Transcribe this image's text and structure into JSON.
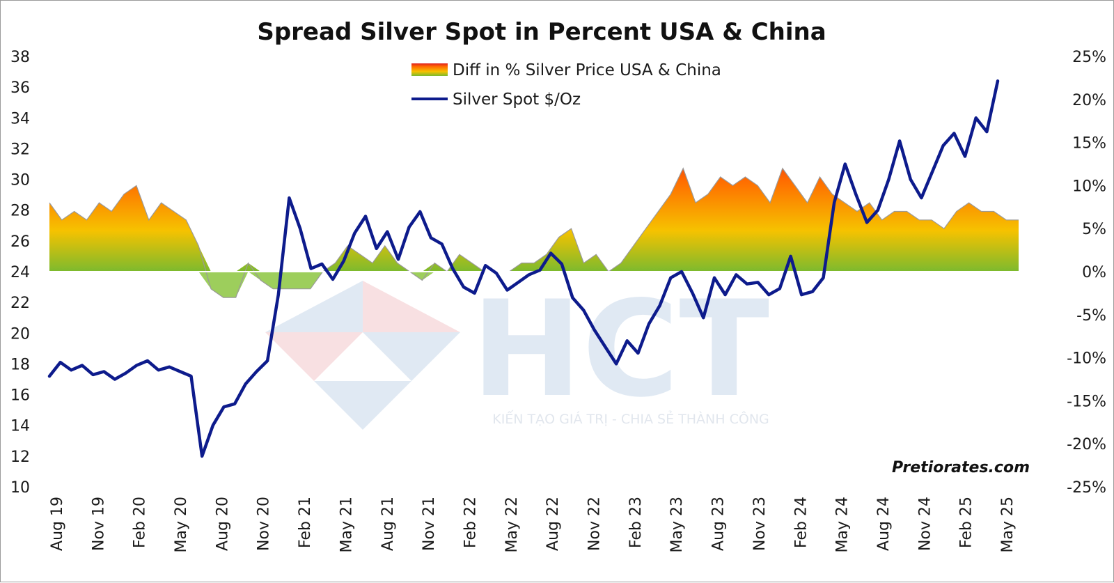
{
  "chart_data": {
    "type": "line",
    "title": "Spread Silver Spot in Percent USA & China",
    "x_tick_labels": [
      "Aug 19",
      "Nov 19",
      "Feb 20",
      "May 20",
      "Aug 20",
      "Nov 20",
      "Feb 21",
      "May 21",
      "Aug 21",
      "Nov 21",
      "Feb 22",
      "May 22",
      "Aug 22",
      "Nov 22",
      "Feb 23",
      "May 23",
      "Aug 23",
      "Nov 23",
      "Feb 24",
      "May 24",
      "Aug 24",
      "Nov 24",
      "Feb 25",
      "May 25"
    ],
    "y_left": {
      "ylim": [
        10,
        38
      ],
      "tick_labels": [
        "38",
        "36",
        "34",
        "32",
        "30",
        "28",
        "26",
        "24",
        "22",
        "20",
        "18",
        "16",
        "14",
        "12",
        "10"
      ]
    },
    "y_right": {
      "ylim": [
        -25,
        25
      ],
      "tick_labels": [
        "25%",
        "20%",
        "15%",
        "10%",
        "5%",
        "0%",
        "-5%",
        "-10%",
        "-15%",
        "-20%",
        "-25%"
      ]
    },
    "legend": [
      "Diff in % Silver Price USA & China",
      "Silver Spot  $/Oz"
    ],
    "series": [
      {
        "name": "Diff in % Silver Price USA & China",
        "type": "area",
        "axis": "right",
        "color_scale": [
          "#7cba2e",
          "#f6c200",
          "#ff6a00",
          "#e02020"
        ],
        "values": [
          8,
          6,
          7,
          6,
          8,
          7,
          9,
          10,
          6,
          8,
          7,
          6,
          3,
          -2,
          -3,
          -3,
          1,
          -1,
          -2,
          -2,
          -2,
          -2,
          0,
          1,
          3,
          2,
          1,
          3,
          1,
          0,
          -1,
          1,
          0,
          2,
          1,
          0,
          0,
          0,
          1,
          1,
          2,
          4,
          5,
          1,
          2,
          0,
          1,
          3,
          5,
          7,
          9,
          12,
          8,
          9,
          11,
          10,
          11,
          10,
          8,
          12,
          10,
          8,
          11,
          9,
          8,
          7,
          8,
          6,
          7,
          7,
          6,
          6,
          5,
          7,
          8,
          7,
          7,
          6,
          6
        ]
      },
      {
        "name": "Silver Spot  $/Oz",
        "type": "line",
        "axis": "left",
        "color": "#0d1b8c",
        "values": [
          17.2,
          18.1,
          17.6,
          17.9,
          17.3,
          17.5,
          17.0,
          17.4,
          17.9,
          18.2,
          17.6,
          17.8,
          17.5,
          17.2,
          12.0,
          14.0,
          15.2,
          15.4,
          16.7,
          17.5,
          18.2,
          22.5,
          28.8,
          26.8,
          24.2,
          24.5,
          23.5,
          24.7,
          26.5,
          27.6,
          25.5,
          26.6,
          24.8,
          26.9,
          27.9,
          26.2,
          25.8,
          24.2,
          23.0,
          22.6,
          24.4,
          23.9,
          22.8,
          23.3,
          23.8,
          24.1,
          25.2,
          24.5,
          22.3,
          21.5,
          20.2,
          19.1,
          18.0,
          19.5,
          18.7,
          20.6,
          21.8,
          23.6,
          24.0,
          22.6,
          21.0,
          23.6,
          22.5,
          23.8,
          23.2,
          23.3,
          22.5,
          22.9,
          25.0,
          22.5,
          22.7,
          23.6,
          28.5,
          31.0,
          29.0,
          27.2,
          28.0,
          30.0,
          32.5,
          30.0,
          28.8,
          30.5,
          32.2,
          33.0,
          31.5,
          34.0,
          33.1,
          36.4
        ]
      }
    ],
    "annotations": [
      "Pretiorates.com"
    ]
  },
  "watermark": {
    "brand": "HCT",
    "tagline": "KIẾN TẠO GIÁ TRỊ - CHIA SẺ THÀNH CÔNG"
  }
}
